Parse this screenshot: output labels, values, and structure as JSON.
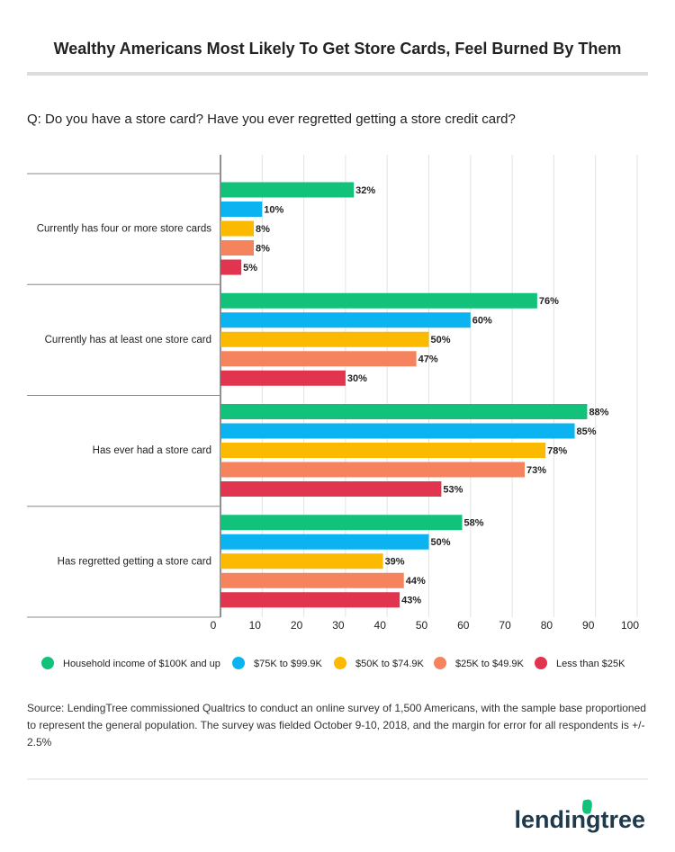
{
  "chart_data": {
    "type": "bar",
    "orientation": "horizontal",
    "title": "Wealthy Americans Most Likely To Get Store Cards, Feel Burned By Them",
    "subtitle": "Q:  Do you have a store card? Have you ever regretted getting a store credit card?",
    "categories": [
      "Currently has four or more store cards",
      "Currently has at least one store card",
      "Has ever had a store card",
      "Has regretted getting a store card"
    ],
    "series": [
      {
        "name": "Household income of $100K and up",
        "color": "#12c27a",
        "values": [
          32,
          76,
          88,
          58
        ],
        "value_labels": [
          "32%",
          "76%",
          "88%",
          "58%"
        ]
      },
      {
        "name": "$75K to $99.9K",
        "color": "#0bb4f0",
        "values": [
          10,
          60,
          85,
          50
        ],
        "value_labels": [
          "10%",
          "60%",
          "85%",
          "50%"
        ]
      },
      {
        "name": "$50K to $74.9K",
        "color": "#fbb900",
        "values": [
          8,
          50,
          78,
          39
        ],
        "value_labels": [
          "8%",
          "50%",
          "78%",
          "39%"
        ]
      },
      {
        "name": "$25K to $49.9K",
        "color": "#f5845e",
        "values": [
          8,
          47,
          73,
          44
        ],
        "value_labels": [
          "8%",
          "47%",
          "73%",
          "44%"
        ]
      },
      {
        "name": "Less than $25K",
        "color": "#e0344f",
        "values": [
          5,
          30,
          53,
          43
        ],
        "value_labels": [
          "5%",
          "30%",
          "53%",
          "43%"
        ]
      }
    ],
    "xlim": [
      0,
      100
    ],
    "xticks": [
      0,
      10,
      20,
      30,
      40,
      50,
      60,
      70,
      80,
      90,
      100
    ],
    "grid": true,
    "legend": "bottom",
    "source": "Source: LendingTree commissioned Qualtrics to conduct an online survey of 1,500 Americans, with the sample base proportioned to represent the general population. The survey was fielded October 9-10, 2018, and the margin for error for all respondents is +/- 2.5%",
    "brand": "lendingtree"
  }
}
